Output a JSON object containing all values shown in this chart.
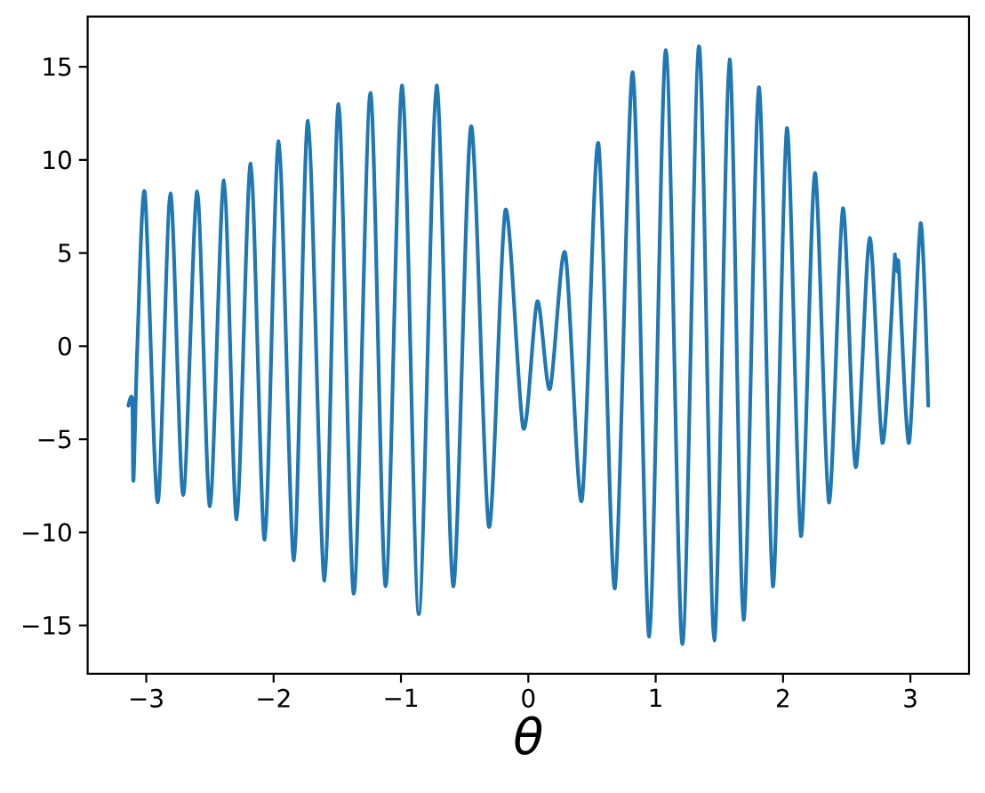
{
  "chart_data": {
    "type": "line",
    "x": [
      -3.14,
      -3.11,
      -3.1,
      -3.07,
      -3.01,
      -2.91,
      -2.81,
      -2.71,
      -2.6,
      -2.5,
      -2.39,
      -2.29,
      -2.18,
      -2.07,
      -1.96,
      -1.84,
      -1.73,
      -1.6,
      -1.49,
      -1.37,
      -1.24,
      -1.12,
      -0.99,
      -0.86,
      -0.72,
      -0.59,
      -0.45,
      -0.31,
      -0.18,
      -0.04,
      0.07,
      0.17,
      0.29,
      0.42,
      0.55,
      0.68,
      0.82,
      0.95,
      1.08,
      1.21,
      1.34,
      1.46,
      1.58,
      1.69,
      1.81,
      1.92,
      2.03,
      2.14,
      2.25,
      2.36,
      2.47,
      2.57,
      2.68,
      2.78,
      2.87,
      2.88,
      2.9,
      2.91,
      2.99,
      3.08,
      3.14
    ],
    "values": [
      -3.2,
      -2.9,
      -7.2,
      0.0,
      8.2,
      -8.4,
      8.2,
      -8.0,
      8.3,
      -8.6,
      8.9,
      -9.3,
      9.8,
      -10.4,
      11.0,
      -11.5,
      12.1,
      -12.6,
      13.0,
      -13.3,
      13.6,
      -12.9,
      14.0,
      -14.4,
      14.0,
      -12.9,
      11.8,
      -9.7,
      7.3,
      -4.4,
      2.4,
      -2.3,
      5.0,
      -8.3,
      10.9,
      -13.0,
      14.7,
      -15.6,
      15.9,
      -16.0,
      16.1,
      -15.8,
      15.4,
      -14.7,
      13.9,
      -12.9,
      11.7,
      -10.2,
      9.3,
      -8.4,
      7.4,
      -6.5,
      5.8,
      -5.2,
      4.0,
      4.8,
      4.0,
      4.1,
      -5.2,
      6.6,
      -3.2
    ],
    "color": "#1f77b4",
    "line_style": "solid",
    "xlabel": "θ",
    "xlim": [
      -3.46,
      3.46
    ],
    "ylim": [
      -17.6,
      17.7
    ],
    "xticks": [
      {
        "value": -3,
        "label": "−3"
      },
      {
        "value": -2,
        "label": "−2"
      },
      {
        "value": -1,
        "label": "−1"
      },
      0,
      1,
      2,
      3
    ],
    "yticks": [
      {
        "value": -15,
        "label": "−15"
      },
      {
        "value": -10,
        "label": "−10"
      },
      {
        "value": -5,
        "label": "−5"
      },
      0,
      5,
      10,
      15
    ]
  }
}
